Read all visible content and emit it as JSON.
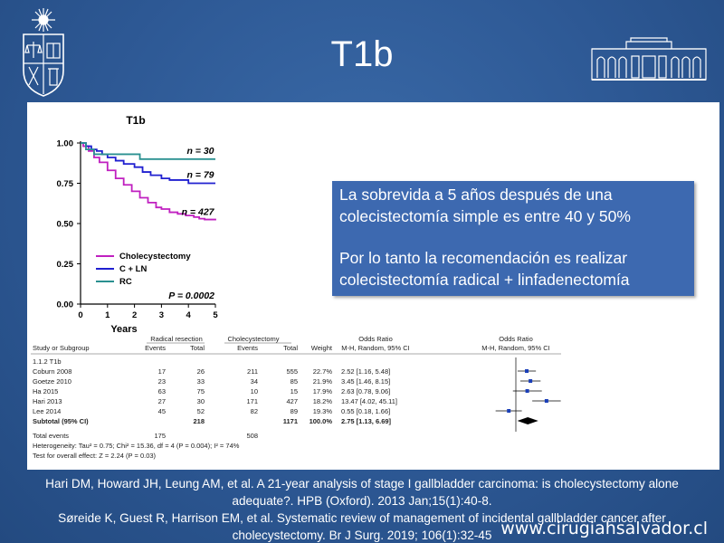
{
  "slide": {
    "title": "T1b",
    "website": "www.cirugiahsalvador.cl"
  },
  "callout": {
    "line1": "La sobrevida a 5 años después de una",
    "line2": "colecistectomía simple es entre 40 y 50%",
    "line3": "Por lo tanto la recomendación es realizar",
    "line4": "colecistectomía radical + linfadenectomía"
  },
  "references": {
    "ref1_line1": "Hari DM, Howard JH, Leung AM, et al. A 21-year analysis of stage I gallbladder carcinoma: is cholecystectomy alone",
    "ref1_line2": "adequate?.  HPB (Oxford). 2013 Jan;15(1):40-8.",
    "ref2_line1": "Søreide K, Guest R, Harrison EM, et al. Systematic review of management of incidental gallbladder cancer after",
    "ref2_line2": "cholecystectomy. Br J Surg. 2019; 106(1):32-45"
  },
  "chart_data": [
    {
      "type": "line",
      "title": "T1b",
      "xlabel": "Years",
      "ylabel": "",
      "xlim": [
        0,
        5
      ],
      "ylim": [
        0,
        1
      ],
      "x_ticks": [
        "0",
        "1",
        "2",
        "3",
        "4",
        "5"
      ],
      "y_ticks": [
        "0.00",
        "0.25",
        "0.50",
        "0.75",
        "1.00"
      ],
      "legend_position": "bottom-left",
      "series": [
        {
          "name": "Cholecystectomy",
          "color": "#c020c0",
          "label": "n = 427",
          "points": [
            [
              0,
              1.0
            ],
            [
              0.1,
              0.98
            ],
            [
              0.3,
              0.95
            ],
            [
              0.5,
              0.91
            ],
            [
              0.7,
              0.88
            ],
            [
              1.0,
              0.83
            ],
            [
              1.3,
              0.78
            ],
            [
              1.6,
              0.74
            ],
            [
              1.9,
              0.7
            ],
            [
              2.2,
              0.66
            ],
            [
              2.5,
              0.63
            ],
            [
              2.8,
              0.6
            ],
            [
              3.0,
              0.59
            ],
            [
              3.3,
              0.57
            ],
            [
              3.6,
              0.56
            ],
            [
              3.9,
              0.55
            ],
            [
              4.2,
              0.54
            ],
            [
              4.4,
              0.53
            ],
            [
              4.6,
              0.525
            ],
            [
              5.0,
              0.52
            ]
          ]
        },
        {
          "name": "C + LN",
          "color": "#2020d0",
          "label": "n = 79",
          "points": [
            [
              0,
              1.0
            ],
            [
              0.2,
              0.98
            ],
            [
              0.4,
              0.96
            ],
            [
              0.6,
              0.95
            ],
            [
              0.8,
              0.93
            ],
            [
              1.0,
              0.91
            ],
            [
              1.3,
              0.89
            ],
            [
              1.6,
              0.87
            ],
            [
              2.0,
              0.85
            ],
            [
              2.3,
              0.82
            ],
            [
              2.6,
              0.8
            ],
            [
              3.0,
              0.78
            ],
            [
              3.3,
              0.77
            ],
            [
              3.9,
              0.77
            ],
            [
              4.0,
              0.75
            ],
            [
              5.0,
              0.75
            ]
          ]
        },
        {
          "name": "RC",
          "color": "#2a9090",
          "label": "n = 30",
          "points": [
            [
              0,
              1.0
            ],
            [
              0.2,
              0.96
            ],
            [
              0.4,
              0.96
            ],
            [
              0.5,
              0.93
            ],
            [
              2.2,
              0.93
            ],
            [
              2.2,
              0.9
            ],
            [
              5.0,
              0.9
            ]
          ]
        }
      ],
      "annotation": "P = 0.0002"
    },
    {
      "type": "table",
      "title": "",
      "group_headers": [
        "Radical resection",
        "Cholecystectomy",
        "Odds Ratio",
        "Odds Ratio"
      ],
      "columns": [
        "Study or Subgroup",
        "Events",
        "Total",
        "Events",
        "Total",
        "Weight",
        "M-H, Random, 95% CI",
        "M-H, Random, 95% CI"
      ],
      "subgroup": "1.1.2 T1b",
      "rows": [
        {
          "study": "Coburn 2008",
          "e1": "17",
          "t1": "26",
          "e2": "211",
          "t2": "555",
          "weight": "22.7%",
          "ci": "2.52 [1.16, 5.48]",
          "or": 2.52,
          "lo": 1.16,
          "hi": 5.48
        },
        {
          "study": "Goetze 2010",
          "e1": "23",
          "t1": "33",
          "e2": "34",
          "t2": "85",
          "weight": "21.9%",
          "ci": "3.45 [1.46, 8.15]",
          "or": 3.45,
          "lo": 1.46,
          "hi": 8.15
        },
        {
          "study": "Ha 2015",
          "e1": "63",
          "t1": "75",
          "e2": "10",
          "t2": "15",
          "weight": "17.9%",
          "ci": "2.63 [0.78, 9.06]",
          "or": 2.63,
          "lo": 0.78,
          "hi": 9.06
        },
        {
          "study": "Hari 2013",
          "e1": "27",
          "t1": "30",
          "e2": "171",
          "t2": "427",
          "weight": "18.2%",
          "ci": "13.47 [4.02, 45.11]",
          "or": 13.47,
          "lo": 4.02,
          "hi": 45.11
        },
        {
          "study": "Lee 2014",
          "e1": "45",
          "t1": "52",
          "e2": "82",
          "t2": "89",
          "weight": "19.3%",
          "ci": "0.55 [0.18, 1.66]",
          "or": 0.55,
          "lo": 0.18,
          "hi": 1.66
        }
      ],
      "subtotal": {
        "study": "Subtotal (95% CI)",
        "t1": "218",
        "t2": "1171",
        "weight": "100.0%",
        "ci": "2.75 [1.13, 6.69]",
        "or": 2.75,
        "lo": 1.13,
        "hi": 6.69
      },
      "total_events": {
        "label": "Total events",
        "e1": "175",
        "e2": "508"
      },
      "heterogeneity": "Heterogeneity: Tau² = 0.75; Chi² = 15.36, df = 4 (P = 0.004); I² = 74%",
      "overall_effect": "Test for overall effect: Z = 2.24 (P = 0.03)"
    }
  ]
}
